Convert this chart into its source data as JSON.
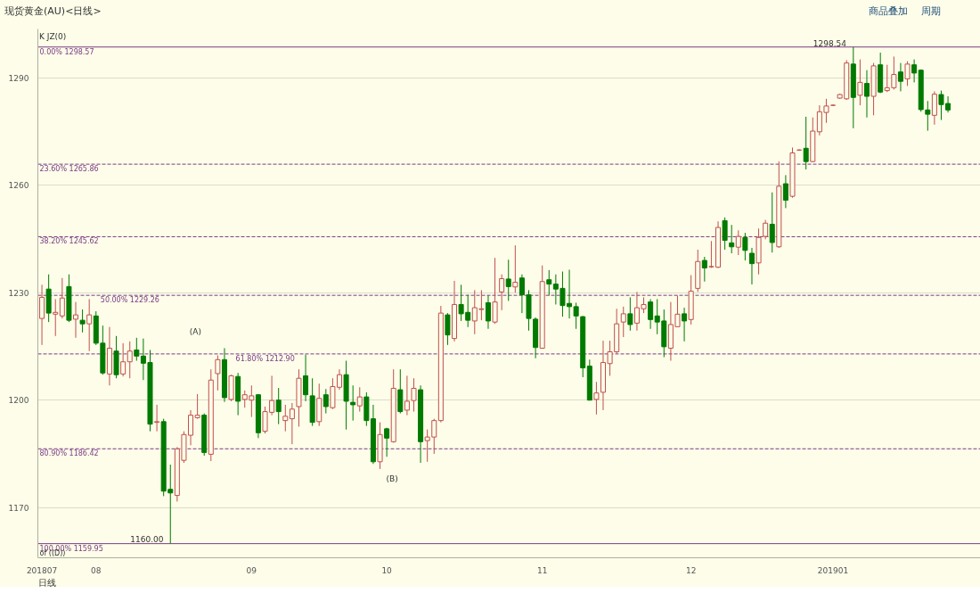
{
  "chart_data": {
    "type": "candlestick",
    "title": "现货黄金(AU)<日线>",
    "xlabel": "日线",
    "categories": [
      "201807",
      null,
      null,
      null,
      null,
      null,
      null,
      null,
      "08",
      null,
      null,
      null,
      null,
      null,
      null,
      null,
      null,
      null,
      null,
      null,
      null,
      null,
      null,
      null,
      null,
      null,
      null,
      null,
      null,
      null,
      null,
      "09",
      null,
      null,
      null,
      null,
      null,
      null,
      null,
      null,
      null,
      null,
      null,
      null,
      null,
      null,
      null,
      null,
      null,
      null,
      null,
      "10",
      null,
      null,
      null,
      null,
      null,
      null,
      null,
      null,
      null,
      null,
      null,
      null,
      null,
      null,
      null,
      null,
      null,
      null,
      null,
      null,
      null,
      null,
      "11",
      null,
      null,
      null,
      null,
      null,
      null,
      null,
      null,
      null,
      null,
      null,
      null,
      null,
      null,
      null,
      null,
      null,
      null,
      null,
      null,
      null,
      "12",
      null,
      null,
      null,
      null,
      null,
      null,
      null,
      null,
      null,
      null,
      null,
      null,
      null,
      null,
      null,
      null,
      null,
      null,
      null,
      null,
      "201901",
      null,
      null,
      null,
      null,
      null,
      null,
      null,
      null,
      null,
      null,
      null,
      null,
      null,
      null,
      null,
      null,
      null
    ],
    "ohlc": [
      [
        1222.8,
        1232.2,
        1215.4,
        1228.7
      ],
      [
        1231.0,
        1235.1,
        1221.8,
        1224.3
      ],
      [
        1224.0,
        1228.2,
        1217.9,
        1224.5
      ],
      [
        1223.5,
        1234.1,
        1222.8,
        1228.5
      ],
      [
        1231.7,
        1235.1,
        1221.8,
        1222.3
      ],
      [
        1222.6,
        1227.4,
        1217.4,
        1223.8
      ],
      [
        1222.3,
        1225.3,
        1218.9,
        1221.3
      ],
      [
        1221.3,
        1228.2,
        1213.7,
        1223.8
      ],
      [
        1223.5,
        1224.8,
        1215.4,
        1215.9
      ],
      [
        1215.9,
        1220.8,
        1207.1,
        1207.6
      ],
      [
        1207.3,
        1220.4,
        1204.1,
        1214.5
      ],
      [
        1213.7,
        1217.9,
        1206.1,
        1207.1
      ],
      [
        1207.3,
        1215.9,
        1206.6,
        1210.7
      ],
      [
        1210.7,
        1216.4,
        1206.1,
        1213.7
      ],
      [
        1214.0,
        1217.4,
        1211.0,
        1212.3
      ],
      [
        1212.3,
        1217.2,
        1205.6,
        1210.3
      ],
      [
        1210.5,
        1214.0,
        1191.3,
        1193.3
      ],
      [
        1193.8,
        1198.7,
        1191.3,
        1194.0
      ],
      [
        1194.0,
        1194.8,
        1173.2,
        1174.6
      ],
      [
        1175.1,
        1182.0,
        1160.0,
        1174.1
      ],
      [
        1173.4,
        1186.9,
        1171.7,
        1186.4
      ],
      [
        1183.2,
        1191.3,
        1182.5,
        1190.4
      ],
      [
        1190.2,
        1197.2,
        1187.4,
        1195.8
      ],
      [
        1195.1,
        1201.7,
        1194.8,
        1195.8
      ],
      [
        1195.8,
        1196.3,
        1184.5,
        1185.4
      ],
      [
        1184.9,
        1208.6,
        1183.0,
        1205.6
      ],
      [
        1207.4,
        1212.5,
        1202.7,
        1211.3
      ],
      [
        1211.3,
        1214.5,
        1199.5,
        1200.7
      ],
      [
        1200.2,
        1207.1,
        1199.7,
        1206.8
      ],
      [
        1206.6,
        1207.6,
        1195.8,
        1199.7
      ],
      [
        1200.2,
        1202.7,
        1197.9,
        1201.5
      ],
      [
        1200.0,
        1204.1,
        1195.3,
        1201.2
      ],
      [
        1201.5,
        1201.7,
        1189.4,
        1190.9
      ],
      [
        1191.3,
        1198.2,
        1190.7,
        1196.8
      ],
      [
        1196.6,
        1206.8,
        1195.8,
        1199.9
      ],
      [
        1200.0,
        1203.4,
        1193.3,
        1196.8
      ],
      [
        1194.3,
        1198.7,
        1191.3,
        1195.5
      ],
      [
        1194.8,
        1199.2,
        1187.7,
        1197.5
      ],
      [
        1198.2,
        1208.6,
        1192.6,
        1206.1
      ],
      [
        1206.8,
        1212.7,
        1199.7,
        1201.5
      ],
      [
        1201.2,
        1206.1,
        1192.8,
        1193.8
      ],
      [
        1194.0,
        1204.6,
        1192.8,
        1200.5
      ],
      [
        1201.5,
        1203.1,
        1196.3,
        1198.2
      ],
      [
        1197.9,
        1206.1,
        1197.5,
        1203.8
      ],
      [
        1203.6,
        1208.6,
        1202.9,
        1207.1
      ],
      [
        1207.1,
        1211.0,
        1191.8,
        1199.7
      ],
      [
        1199.4,
        1204.1,
        1194.3,
        1198.7
      ],
      [
        1198.4,
        1203.6,
        1196.8,
        1200.9
      ],
      [
        1200.9,
        1202.2,
        1192.8,
        1194.3
      ],
      [
        1194.8,
        1198.7,
        1182.2,
        1182.8
      ],
      [
        1182.8,
        1193.8,
        1180.8,
        1190.4
      ],
      [
        1192.0,
        1192.3,
        1184.2,
        1189.4
      ],
      [
        1188.4,
        1208.6,
        1188.1,
        1203.3
      ],
      [
        1202.9,
        1208.6,
        1196.3,
        1196.8
      ],
      [
        1197.2,
        1206.8,
        1195.8,
        1199.7
      ],
      [
        1199.9,
        1206.1,
        1196.8,
        1203.3
      ],
      [
        1202.9,
        1204.1,
        1182.5,
        1188.4
      ],
      [
        1188.7,
        1191.8,
        1182.8,
        1189.7
      ],
      [
        1189.7,
        1194.8,
        1185.0,
        1194.3
      ],
      [
        1194.3,
        1226.3,
        1193.8,
        1224.3
      ],
      [
        1223.8,
        1224.3,
        1215.4,
        1218.2
      ],
      [
        1217.2,
        1233.3,
        1216.4,
        1226.7
      ],
      [
        1226.7,
        1232.2,
        1222.1,
        1224.1
      ],
      [
        1224.5,
        1229.4,
        1220.4,
        1222.3
      ],
      [
        1222.1,
        1230.7,
        1218.4,
        1225.8
      ],
      [
        1225.3,
        1230.7,
        1222.3,
        1225.5
      ],
      [
        1227.2,
        1229.2,
        1219.9,
        1222.1
      ],
      [
        1221.8,
        1239.7,
        1221.3,
        1227.4
      ],
      [
        1230.2,
        1235.1,
        1225.1,
        1233.9
      ],
      [
        1233.8,
        1239.2,
        1227.7,
        1231.7
      ],
      [
        1231.6,
        1243.2,
        1230.0,
        1232.9
      ],
      [
        1234.1,
        1235.1,
        1224.3,
        1229.4
      ],
      [
        1229.4,
        1230.7,
        1219.4,
        1222.8
      ],
      [
        1222.6,
        1223.1,
        1211.7,
        1214.7
      ],
      [
        1214.5,
        1237.6,
        1214.5,
        1233.1
      ],
      [
        1233.6,
        1236.3,
        1229.2,
        1232.4
      ],
      [
        1232.4,
        1235.1,
        1226.7,
        1231.0
      ],
      [
        1231.2,
        1235.9,
        1223.3,
        1226.4
      ],
      [
        1227.0,
        1236.4,
        1222.8,
        1226.1
      ],
      [
        1226.1,
        1227.2,
        1219.9,
        1223.5
      ],
      [
        1223.3,
        1223.5,
        1206.4,
        1209.0
      ],
      [
        1209.5,
        1211.3,
        1199.9,
        1200.0
      ],
      [
        1200.2,
        1205.1,
        1196.0,
        1202.0
      ],
      [
        1202.2,
        1216.6,
        1197.2,
        1210.5
      ],
      [
        1210.2,
        1216.6,
        1206.8,
        1213.5
      ],
      [
        1213.5,
        1225.5,
        1213.0,
        1221.3
      ],
      [
        1221.8,
        1226.1,
        1217.6,
        1224.1
      ],
      [
        1224.1,
        1228.7,
        1219.4,
        1221.1
      ],
      [
        1221.5,
        1230.2,
        1219.4,
        1225.8
      ],
      [
        1225.5,
        1228.7,
        1224.3,
        1226.7
      ],
      [
        1227.4,
        1228.2,
        1219.9,
        1222.5
      ],
      [
        1223.5,
        1228.2,
        1218.4,
        1221.8
      ],
      [
        1222.1,
        1225.3,
        1212.0,
        1214.9
      ],
      [
        1214.5,
        1227.4,
        1211.0,
        1221.1
      ],
      [
        1220.5,
        1229.2,
        1220.4,
        1224.0
      ],
      [
        1224.1,
        1225.8,
        1216.4,
        1222.1
      ],
      [
        1222.5,
        1234.9,
        1221.1,
        1230.4
      ],
      [
        1231.2,
        1242.0,
        1230.2,
        1238.7
      ],
      [
        1239.0,
        1240.0,
        1233.1,
        1236.9
      ],
      [
        1237.2,
        1244.4,
        1236.9,
        1237.3
      ],
      [
        1237.1,
        1249.9,
        1236.9,
        1248.2
      ],
      [
        1250.1,
        1251.0,
        1242.0,
        1244.6
      ],
      [
        1243.9,
        1248.9,
        1241.0,
        1242.8
      ],
      [
        1242.7,
        1247.4,
        1240.5,
        1245.7
      ],
      [
        1245.4,
        1246.7,
        1239.0,
        1241.8
      ],
      [
        1241.0,
        1242.5,
        1232.3,
        1238.1
      ],
      [
        1238.3,
        1247.9,
        1235.1,
        1245.4
      ],
      [
        1245.7,
        1250.3,
        1244.9,
        1249.4
      ],
      [
        1249.1,
        1258.0,
        1241.2,
        1244.0
      ],
      [
        1242.8,
        1266.6,
        1242.5,
        1259.7
      ],
      [
        1260.4,
        1262.8,
        1253.6,
        1255.8
      ],
      [
        1256.9,
        1270.5,
        1256.5,
        1269.0
      ],
      [
        1269.8,
        1270.0,
        1269.6,
        1269.8
      ],
      [
        1270.3,
        1279.1,
        1264.4,
        1266.6
      ],
      [
        1266.6,
        1278.9,
        1266.4,
        1275.1
      ],
      [
        1274.9,
        1282.3,
        1273.9,
        1280.5
      ],
      [
        1280.3,
        1284.1,
        1277.4,
        1282.1
      ],
      [
        1282.3,
        1282.5,
        1282.1,
        1282.3
      ],
      [
        1284.3,
        1285.5,
        1284.1,
        1285.3
      ],
      [
        1284.1,
        1294.9,
        1283.8,
        1294.1
      ],
      [
        1293.8,
        1298.54,
        1275.9,
        1284.5
      ],
      [
        1285.1,
        1295.1,
        1282.3,
        1288.7
      ],
      [
        1288.4,
        1292.1,
        1278.9,
        1284.8
      ],
      [
        1284.8,
        1294.1,
        1279.5,
        1293.3
      ],
      [
        1293.6,
        1297.0,
        1285.7,
        1286.0
      ],
      [
        1286.4,
        1293.6,
        1286.0,
        1287.2
      ],
      [
        1287.2,
        1295.9,
        1286.7,
        1290.9
      ],
      [
        1291.6,
        1294.1,
        1286.2,
        1289.0
      ],
      [
        1289.7,
        1294.6,
        1287.7,
        1293.8
      ],
      [
        1293.6,
        1295.1,
        1288.7,
        1291.3
      ],
      [
        1292.1,
        1292.3,
        1280.5,
        1281.1
      ],
      [
        1281.0,
        1283.5,
        1275.2,
        1279.8
      ],
      [
        1279.5,
        1286.2,
        1276.9,
        1285.4
      ],
      [
        1285.3,
        1286.4,
        1278.2,
        1282.5
      ],
      [
        1282.8,
        1284.8,
        1280.3,
        1281.0
      ]
    ],
    "colors": [
      "#c0504d",
      "#007a00",
      "#c0504d",
      "#c0504d",
      "#007a00",
      "#c0504d",
      "#007a00",
      "#c0504d",
      "#007a00",
      "#007a00",
      "#c0504d",
      "#007a00",
      "#c0504d",
      "#c0504d",
      "#007a00",
      "#007a00",
      "#007a00",
      "#c0504d",
      "#007a00",
      "#007a00",
      "#c0504d",
      "#c0504d",
      "#c0504d",
      "#c0504d",
      "#007a00",
      "#c0504d",
      "#c0504d",
      "#007a00",
      "#c0504d",
      "#007a00",
      "#c0504d",
      "#c0504d",
      "#007a00",
      "#c0504d",
      "#c0504d",
      "#007a00",
      "#c0504d",
      "#c0504d",
      "#c0504d",
      "#007a00",
      "#007a00",
      "#c0504d",
      "#007a00",
      "#c0504d",
      "#c0504d",
      "#007a00",
      "#007a00",
      "#c0504d",
      "#007a00",
      "#007a00",
      "#c0504d",
      "#007a00",
      "#c0504d",
      "#007a00",
      "#c0504d",
      "#c0504d",
      "#007a00",
      "#c0504d",
      "#c0504d",
      "#c0504d",
      "#007a00",
      "#c0504d",
      "#007a00",
      "#007a00",
      "#c0504d",
      "#c0504d",
      "#007a00",
      "#c0504d",
      "#c0504d",
      "#007a00",
      "#c0504d",
      "#007a00",
      "#007a00",
      "#007a00",
      "#c0504d",
      "#007a00",
      "#007a00",
      "#007a00",
      "#007a00",
      "#007a00",
      "#007a00",
      "#007a00",
      "#c0504d",
      "#c0504d",
      "#c0504d",
      "#c0504d",
      "#c0504d",
      "#007a00",
      "#c0504d",
      "#c0504d",
      "#007a00",
      "#007a00",
      "#007a00",
      "#c0504d",
      "#c0504d",
      "#007a00",
      "#c0504d",
      "#c0504d",
      "#007a00",
      "#c0504d",
      "#c0504d",
      "#007a00",
      "#007a00",
      "#c0504d",
      "#007a00",
      "#007a00",
      "#c0504d",
      "#c0504d",
      "#007a00",
      "#c0504d",
      "#007a00",
      "#c0504d",
      "#c0504d",
      "#007a00",
      "#c0504d",
      "#c0504d",
      "#c0504d",
      "#c0504d",
      "#c0504d",
      "#c0504d",
      "#007a00",
      "#c0504d",
      "#007a00",
      "#c0504d",
      "#007a00",
      "#c0504d",
      "#c0504d",
      "#007a00",
      "#c0504d",
      "#007a00",
      "#007a00",
      "#007a00",
      "#c0504d",
      "#007a00",
      "#007a00"
    ],
    "ylim": [
      1156,
      1303.6
    ],
    "yticks": [
      1170,
      1200,
      1230,
      1260,
      1290
    ],
    "grid": "y",
    "ref_lines": [
      {
        "axis": "y",
        "value": 1298.57,
        "label": "0.00% 1298.57",
        "color": "#7a3d86",
        "line_style": "solid"
      },
      {
        "axis": "y",
        "value": 1265.86,
        "label": "23.60% 1265.86",
        "color": "#7a3d86",
        "line_style": "dashed"
      },
      {
        "axis": "y",
        "value": 1245.62,
        "label": "38.20% 1245.62",
        "color": "#7a3d86",
        "line_style": "dashed"
      },
      {
        "axis": "y",
        "value": 1229.26,
        "label": "50.00% 1229.26",
        "color": "#7a3d86",
        "line_style": "dashed"
      },
      {
        "axis": "y",
        "value": 1212.9,
        "label": "61.80% 1212.90",
        "color": "#7a3d86",
        "line_style": "dashed"
      },
      {
        "axis": "y",
        "value": 1186.42,
        "label": "80.90% 1186.42",
        "color": "#7a3d86",
        "line_style": "dashed"
      },
      {
        "axis": "y",
        "value": 1159.95,
        "label": "100.00% 1159.95",
        "color": "#7a3d86",
        "line_style": "solid"
      }
    ],
    "annotations": [
      "K  JZ(0)",
      "(A)",
      "(B)",
      {
        "text": "1160.00",
        "y": 1160.0
      },
      {
        "text": "1298.54",
        "y": 1298.54
      },
      "of ((D))",
      "商品叠加",
      "周期"
    ]
  }
}
